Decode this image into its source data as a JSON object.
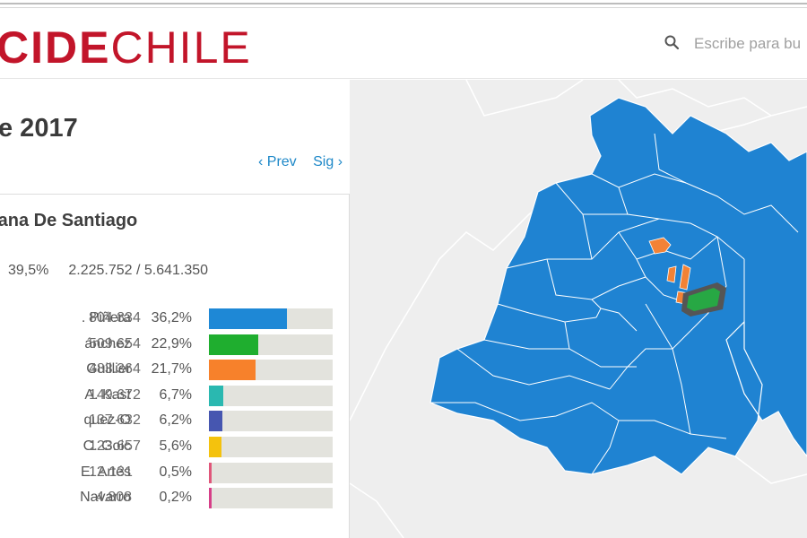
{
  "header": {
    "logo_bold": "CIDE",
    "logo_light": "CHILE",
    "search_placeholder": "Escribe para bu"
  },
  "page": {
    "title": "e 2017",
    "prev_label": "‹ Prev",
    "next_label": "Sig ›"
  },
  "card": {
    "title": "tana De Santiago",
    "turnout_pct": "39,5%",
    "turnout_counts": "2.225.752 / 5.641.350",
    "candidates": [
      {
        "name": ". Piñera",
        "votes": "804.834",
        "pct": "36,2%",
        "share": 0.362,
        "color": "#1e88d6"
      },
      {
        "name": "ánchez",
        "votes": "509.654",
        "pct": "22,9%",
        "share": 0.229,
        "color": "#1fae2f"
      },
      {
        "name": "Guillier",
        "votes": "483.364",
        "pct": "21,7%",
        "share": 0.217,
        "color": "#f7812b"
      },
      {
        "name": "A. Kast",
        "votes": "149.672",
        "pct": "6,7%",
        "share": 0.067,
        "color": "#2ab8b0"
      },
      {
        "name": "quez-O",
        "votes": "137.632",
        "pct": "6,2%",
        "share": 0.062,
        "color": "#4656b0"
      },
      {
        "name": "C. Goic",
        "votes": "123.657",
        "pct": "5,6%",
        "share": 0.056,
        "color": "#f4c20d"
      },
      {
        "name": "E. Artés",
        "votes": "12.131",
        "pct": "0,5%",
        "share": 0.005,
        "color": "#e0567a"
      },
      {
        "name": "Navarro",
        "votes": "4.808",
        "pct": "0,2%",
        "share": 0.002,
        "color": "#d63f88"
      }
    ]
  },
  "map": {
    "colors": {
      "blue": "#1f83d2",
      "green": "#27a844",
      "orange": "#f28236",
      "outline": "#555555",
      "background": "#eeeeee"
    }
  }
}
